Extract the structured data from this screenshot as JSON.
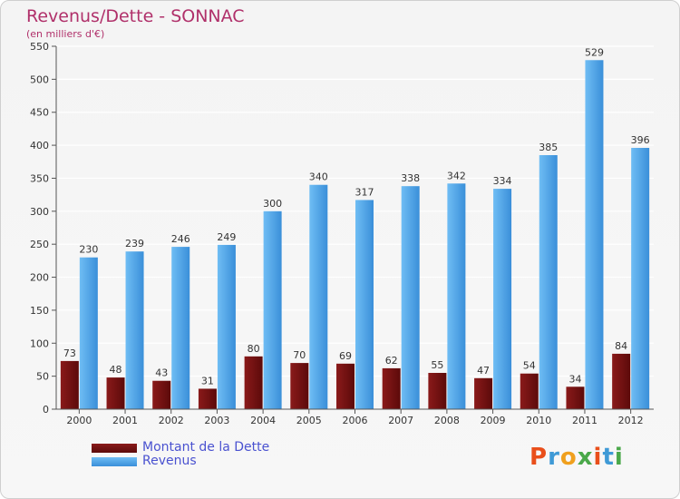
{
  "title": "Revenus/Dette - SONNAC",
  "subtitle": "(en milliers d'€)",
  "colors": {
    "dette": "#7a1212",
    "revenus": "#4aa3e8",
    "title": "#b0306a",
    "legend_text": "#4a52d0"
  },
  "logo": {
    "text": "Proxiti",
    "letters": [
      "P",
      "r",
      "o",
      "x",
      "i",
      "t",
      "i"
    ],
    "colors": [
      "#e94f1b",
      "#3f9ad6",
      "#f0a01e",
      "#4aa84a",
      "#e94f1b",
      "#3f9ad6",
      "#4aa84a"
    ]
  },
  "chart_data": {
    "type": "bar",
    "title": "Revenus/Dette - SONNAC",
    "subtitle": "(en milliers d'€)",
    "categories": [
      "2000",
      "2001",
      "2002",
      "2003",
      "2004",
      "2005",
      "2006",
      "2007",
      "2008",
      "2009",
      "2010",
      "2011",
      "2012"
    ],
    "series": [
      {
        "name": "Montant de la Dette",
        "values": [
          73,
          48,
          43,
          31,
          80,
          70,
          69,
          62,
          55,
          47,
          54,
          34,
          84
        ]
      },
      {
        "name": "Revenus",
        "values": [
          230,
          239,
          246,
          249,
          300,
          340,
          317,
          338,
          342,
          334,
          385,
          529,
          396
        ]
      }
    ],
    "ylim": [
      0,
      550
    ],
    "yticks": [
      0,
      50,
      100,
      150,
      200,
      250,
      300,
      350,
      400,
      450,
      500,
      550
    ],
    "grid": true,
    "legend": "bottom-left"
  }
}
